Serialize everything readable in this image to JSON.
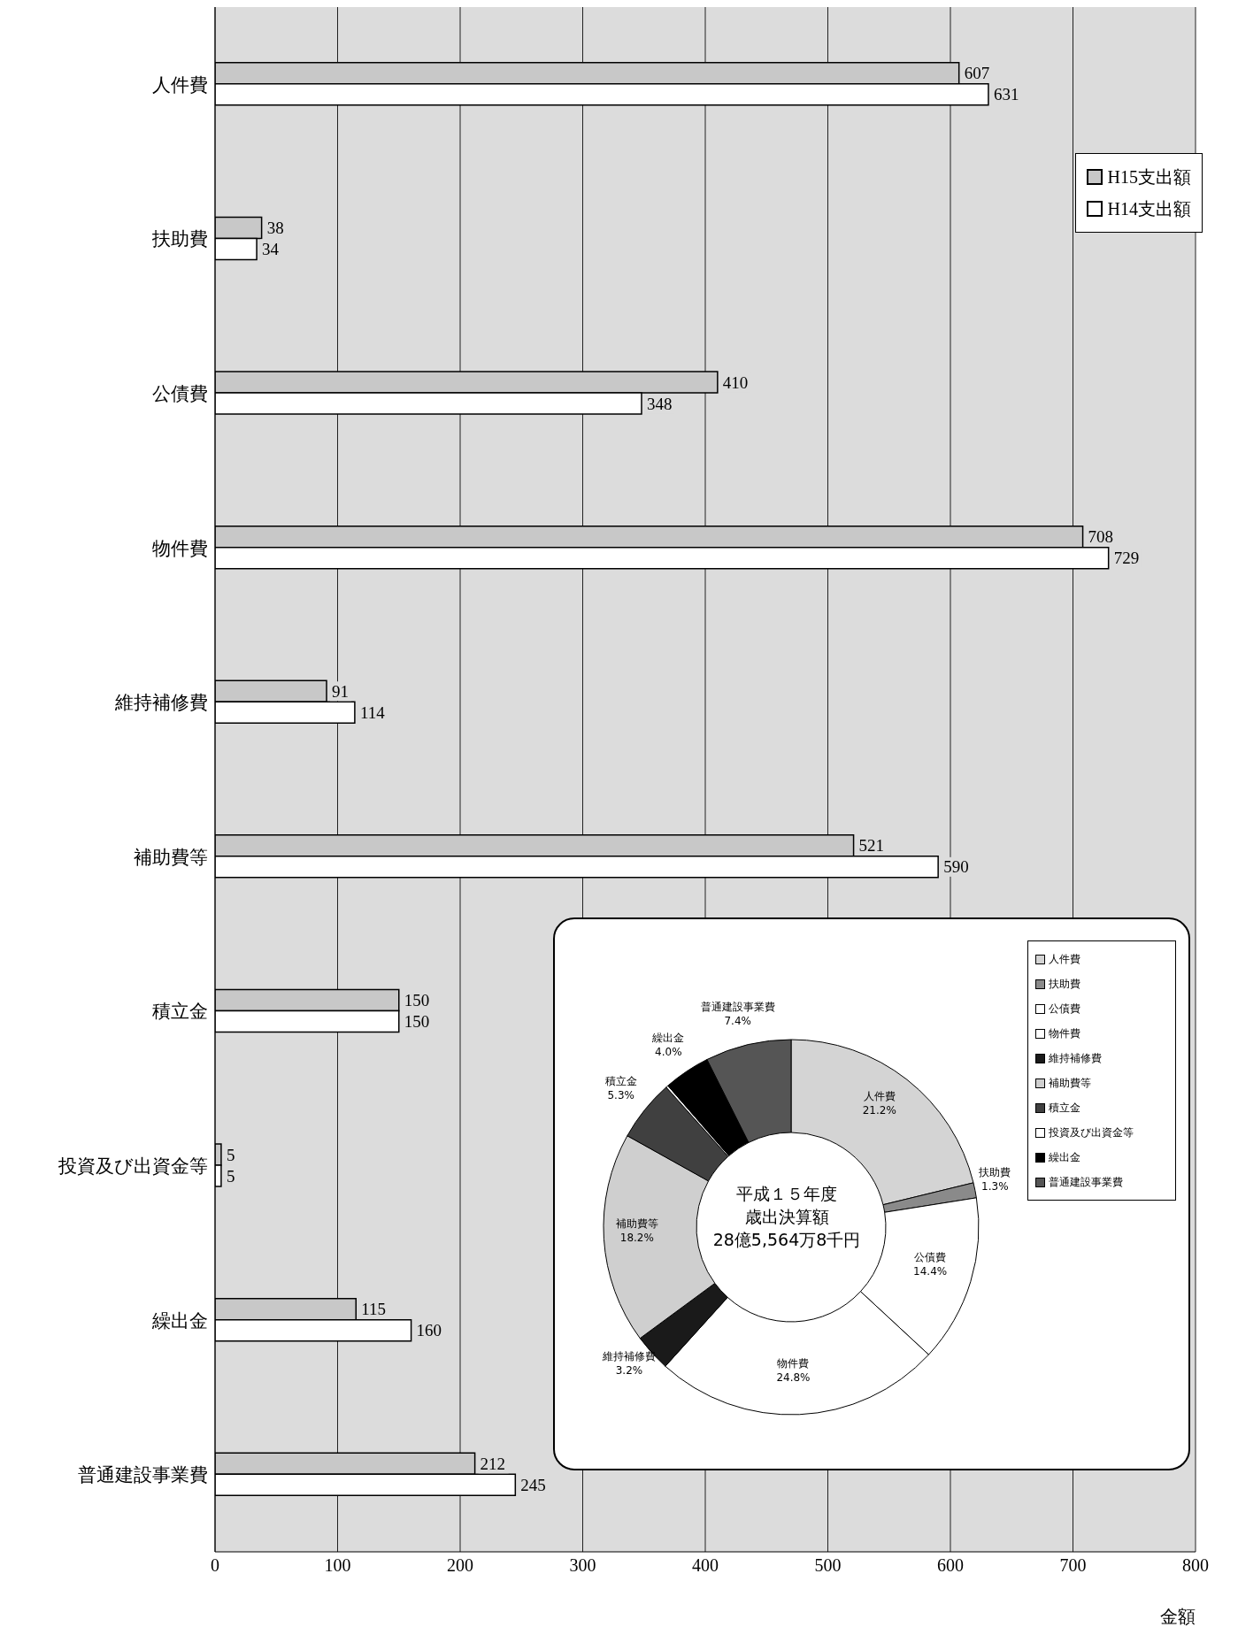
{
  "chart_data": [
    {
      "type": "bar",
      "orientation": "horizontal",
      "categories": [
        "人件費",
        "扶助費",
        "公債費",
        "物件費",
        "維持補修費",
        "補助費等",
        "積立金",
        "投資及び出資金等",
        "繰出金",
        "普通建設事業費"
      ],
      "series": [
        {
          "name": "H15支出額",
          "color": "#c8c8c8",
          "values": [
            607,
            38,
            410,
            708,
            91,
            521,
            150,
            5,
            115,
            212
          ]
        },
        {
          "name": "H14支出額",
          "color": "#ffffff",
          "values": [
            631,
            34,
            348,
            729,
            114,
            590,
            150,
            5,
            160,
            245
          ]
        }
      ],
      "xlim": [
        0,
        800
      ],
      "xticks": [
        0,
        100,
        200,
        300,
        400,
        500,
        600,
        700,
        800
      ],
      "xlabel": "金額",
      "grid": "x",
      "legend": "top right",
      "data_labels": true
    },
    {
      "type": "donut",
      "categories": [
        "人件費",
        "扶助費",
        "公債費",
        "物件費",
        "維持補修費",
        "補助費等",
        "積立金",
        "投資及び出資金等",
        "繰出金",
        "普通建設事業費"
      ],
      "values": [
        21.2,
        1.3,
        14.4,
        24.8,
        3.2,
        18.2,
        5.3,
        0.2,
        4.0,
        7.4
      ],
      "value_labels": [
        "21.2%",
        "1.3%",
        "14.4%",
        "24.8%",
        "3.2%",
        "18.2%",
        "5.3%",
        null,
        "4.0%",
        "7.4%"
      ],
      "colors": [
        "#d4d4d4",
        "#8a8a8a",
        "#ffffff",
        "#ffffff",
        "#1a1a1a",
        "#cfcfcf",
        "#404040",
        "#ffffff",
        "#000000",
        "#555555"
      ],
      "annotations": [
        "平成１５年度",
        "歳出決算額",
        "28億5,564万8千円"
      ],
      "legend": "right"
    }
  ]
}
